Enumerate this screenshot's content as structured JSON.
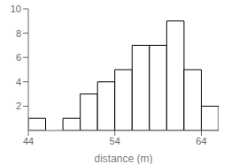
{
  "chart_data": {
    "type": "histogram",
    "bins": [
      44,
      46,
      48,
      50,
      52,
      54,
      56,
      58,
      60,
      62,
      64,
      66
    ],
    "values": [
      1,
      0,
      1,
      3,
      4,
      5,
      7,
      7,
      9,
      5,
      2
    ],
    "xlim": [
      44,
      66
    ],
    "ylim": [
      0,
      10
    ],
    "xticks": [
      44,
      54,
      64
    ],
    "yticks": [
      2,
      4,
      6,
      8,
      10
    ],
    "xlabel": "distance (m)",
    "color": "#ffffff"
  }
}
